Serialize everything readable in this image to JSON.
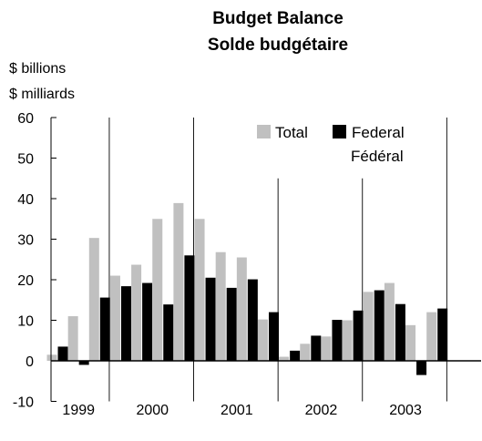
{
  "chart_data": {
    "type": "bar",
    "title": "Budget Balance",
    "subtitle": "Solde budgétaire",
    "ylabel": "$ billions",
    "ylabel_fr": "$ milliards",
    "ylim": [
      -10,
      60
    ],
    "yticks": [
      -10,
      0,
      10,
      20,
      30,
      40,
      50,
      60
    ],
    "legend_position": "top-right",
    "year_labels": [
      "1999",
      "2000",
      "2001",
      "2002",
      "2003"
    ],
    "quarters_per_year": 4,
    "colors": {
      "total": "#c0c0c0",
      "federal": "#000000",
      "axis": "#000000"
    },
    "series": [
      {
        "name": "Total",
        "values": [
          1.5,
          11.0,
          30.3,
          21.0,
          23.7,
          35.0,
          38.9,
          35.0,
          26.8,
          25.5,
          10.2,
          1.0,
          4.2,
          6.0,
          10.0,
          17.0,
          19.2,
          8.8,
          12.0
        ]
      },
      {
        "name": "Federal",
        "name_fr": "Fédéral",
        "values": [
          3.5,
          -1.0,
          15.6,
          18.4,
          19.2,
          13.9,
          26.0,
          20.5,
          18.0,
          20.1,
          12.0,
          2.5,
          6.2,
          10.1,
          12.4,
          17.4,
          14.0,
          -3.5,
          12.9
        ]
      }
    ]
  }
}
